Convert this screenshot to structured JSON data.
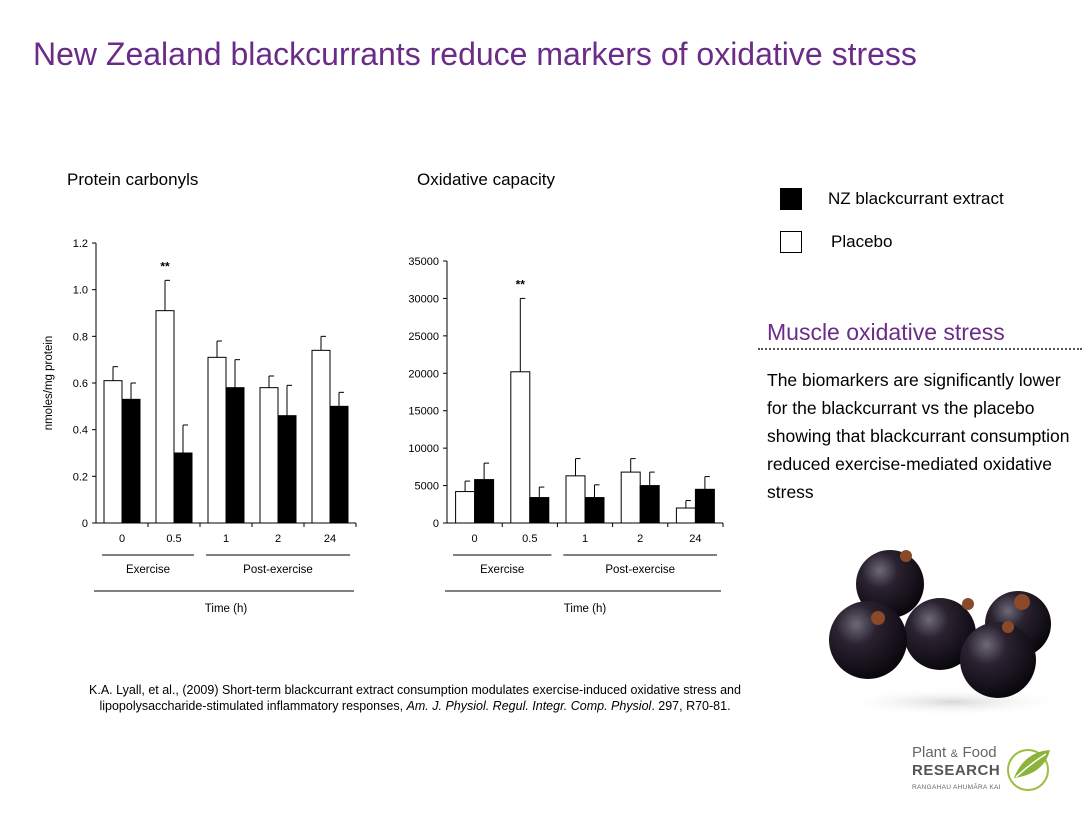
{
  "slide": {
    "title": "New Zealand blackcurrants reduce markers of oxidative stress"
  },
  "legend": {
    "items": [
      {
        "label": "NZ blackcurrant extract",
        "color": "#000000"
      },
      {
        "label": "Placebo",
        "color": "#ffffff"
      }
    ]
  },
  "side": {
    "heading": "Muscle oxidative stress",
    "body": "The biomarkers are significantly lower for the blackcurrant vs the placebo showing that blackcurrant consumption reduced exercise-mediated oxidative stress"
  },
  "citation": {
    "line1": "K.A. Lyall, et al., (2009) Short-term blackcurrant extract consumption modulates exercise-induced oxidative stress and",
    "line2_plain": "lipopolysaccharide-stimulated inflammatory responses, ",
    "journal": "Am. J. Physiol. Regul. Integr. Comp. Physiol",
    "line2_end": ". 297, R70-81."
  },
  "logo": {
    "line1": "Plant",
    "amp": "&",
    "line1b": "Food",
    "line2": "RESEARCH",
    "line3": "RANGAHAU AHUMĀRA KAI"
  },
  "chart_data": [
    {
      "type": "bar",
      "title": "Protein carbonyls",
      "ylabel": "nmoles/mg protein",
      "xlabel": "Time (h)",
      "categories": [
        "0",
        "0.5",
        "1",
        "2",
        "24"
      ],
      "groups": [
        {
          "label": "Exercise",
          "categories": [
            "0",
            "0.5"
          ]
        },
        {
          "label": "Post-exercise",
          "categories": [
            "1",
            "2",
            "24"
          ]
        }
      ],
      "ylim": [
        0,
        1.2
      ],
      "yticks": [
        "0",
        "0.2",
        "0.4",
        "0.6",
        "0.8",
        "1.0",
        "1.2"
      ],
      "ytick_values": [
        0,
        0.2,
        0.4,
        0.6,
        0.8,
        1.0,
        1.2
      ],
      "series": [
        {
          "name": "Placebo",
          "values": [
            0.61,
            0.91,
            0.71,
            0.58,
            0.74
          ],
          "errors": [
            0.06,
            0.13,
            0.07,
            0.05,
            0.06
          ]
        },
        {
          "name": "NZ blackcurrant extract",
          "values": [
            0.53,
            0.3,
            0.58,
            0.46,
            0.5
          ],
          "errors": [
            0.07,
            0.12,
            0.12,
            0.13,
            0.06
          ]
        }
      ],
      "annotations": [
        {
          "category": "0.5",
          "text": "**"
        }
      ]
    },
    {
      "type": "bar",
      "title": "Oxidative capacity",
      "ylabel": "",
      "xlabel": "Time (h)",
      "categories": [
        "0",
        "0.5",
        "1",
        "2",
        "24"
      ],
      "groups": [
        {
          "label": "Exercise",
          "categories": [
            "0",
            "0.5"
          ]
        },
        {
          "label": "Post-exercise",
          "categories": [
            "1",
            "2",
            "24"
          ]
        }
      ],
      "ylim": [
        0,
        35000
      ],
      "yticks": [
        "0",
        "5000",
        "10000",
        "15000",
        "20000",
        "25000",
        "30000",
        "35000"
      ],
      "ytick_values": [
        0,
        5000,
        10000,
        15000,
        20000,
        25000,
        30000,
        35000
      ],
      "series": [
        {
          "name": "Placebo",
          "values": [
            4200,
            20200,
            6300,
            6800,
            2000
          ],
          "errors": [
            1400,
            9800,
            2300,
            1800,
            1000
          ]
        },
        {
          "name": "NZ blackcurrant extract",
          "values": [
            5800,
            3400,
            3400,
            5000,
            4500
          ],
          "errors": [
            2200,
            1400,
            1700,
            1800,
            1700
          ]
        }
      ],
      "annotations": [
        {
          "category": "0.5",
          "text": "**"
        }
      ]
    }
  ]
}
